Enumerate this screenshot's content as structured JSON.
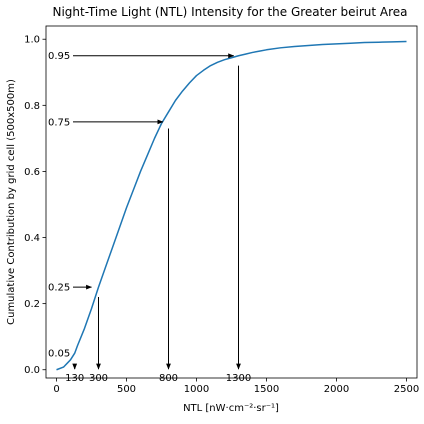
{
  "chart_data": {
    "type": "line",
    "title": "Night-Time Light (NTL) Intensity for the Greater beirut Area",
    "xlabel": "NTL [nW·cm⁻²·sr⁻¹]",
    "ylabel": "Cumulative Contribution by grid cell (500x500m)",
    "xlim": [
      -75,
      2575
    ],
    "ylim": [
      -0.025,
      1.04
    ],
    "x_ticks": [
      0,
      500,
      1000,
      1500,
      2000,
      2500
    ],
    "y_ticks": [
      0.0,
      0.2,
      0.4,
      0.6,
      0.8,
      1.0
    ],
    "x_tick_labels": [
      "0",
      "500",
      "1000",
      "1500",
      "2000",
      "2500"
    ],
    "y_tick_labels": [
      "0.0",
      "0.2",
      "0.4",
      "0.6",
      "0.8",
      "1.0"
    ],
    "grid": false,
    "legend": "none",
    "series": [
      {
        "color": "#1f77b4",
        "x": [
          0,
          50,
          100,
          130,
          150,
          200,
          250,
          300,
          350,
          400,
          450,
          500,
          550,
          600,
          650,
          700,
          750,
          800,
          850,
          900,
          950,
          1000,
          1050,
          1100,
          1150,
          1200,
          1250,
          1300,
          1350,
          1400,
          1450,
          1500,
          1600,
          1700,
          1800,
          1900,
          2000,
          2100,
          2200,
          2300,
          2400,
          2500
        ],
        "y": [
          0.0,
          0.008,
          0.03,
          0.05,
          0.073,
          0.125,
          0.185,
          0.25,
          0.31,
          0.37,
          0.43,
          0.49,
          0.545,
          0.6,
          0.65,
          0.7,
          0.745,
          0.78,
          0.815,
          0.843,
          0.868,
          0.89,
          0.906,
          0.92,
          0.93,
          0.938,
          0.944,
          0.95,
          0.955,
          0.96,
          0.964,
          0.968,
          0.974,
          0.978,
          0.981,
          0.984,
          0.986,
          0.988,
          0.99,
          0.991,
          0.992,
          0.993
        ]
      }
    ],
    "percentile_markers": [
      {
        "label": "0.05",
        "level": 0.05
      },
      {
        "label": "0.25",
        "level": 0.25,
        "arrow_to_x": 250
      },
      {
        "label": "0.75",
        "level": 0.75,
        "arrow_to_x": 760
      },
      {
        "label": "0.95",
        "level": 0.95,
        "arrow_to_x": 1265
      }
    ],
    "vertical_markers": [
      {
        "label": "130",
        "x": 130,
        "from_y": 0.018
      },
      {
        "label": "300",
        "x": 300,
        "from_y": 0.22
      },
      {
        "label": "800",
        "x": 800,
        "from_y": 0.73
      },
      {
        "label": "1300",
        "x": 1300,
        "from_y": 0.92
      }
    ],
    "marker_arrow_end_y": 0.002
  },
  "colors": {
    "line": "#1f77b4",
    "axes": "#000000",
    "arrows": "#000000"
  }
}
